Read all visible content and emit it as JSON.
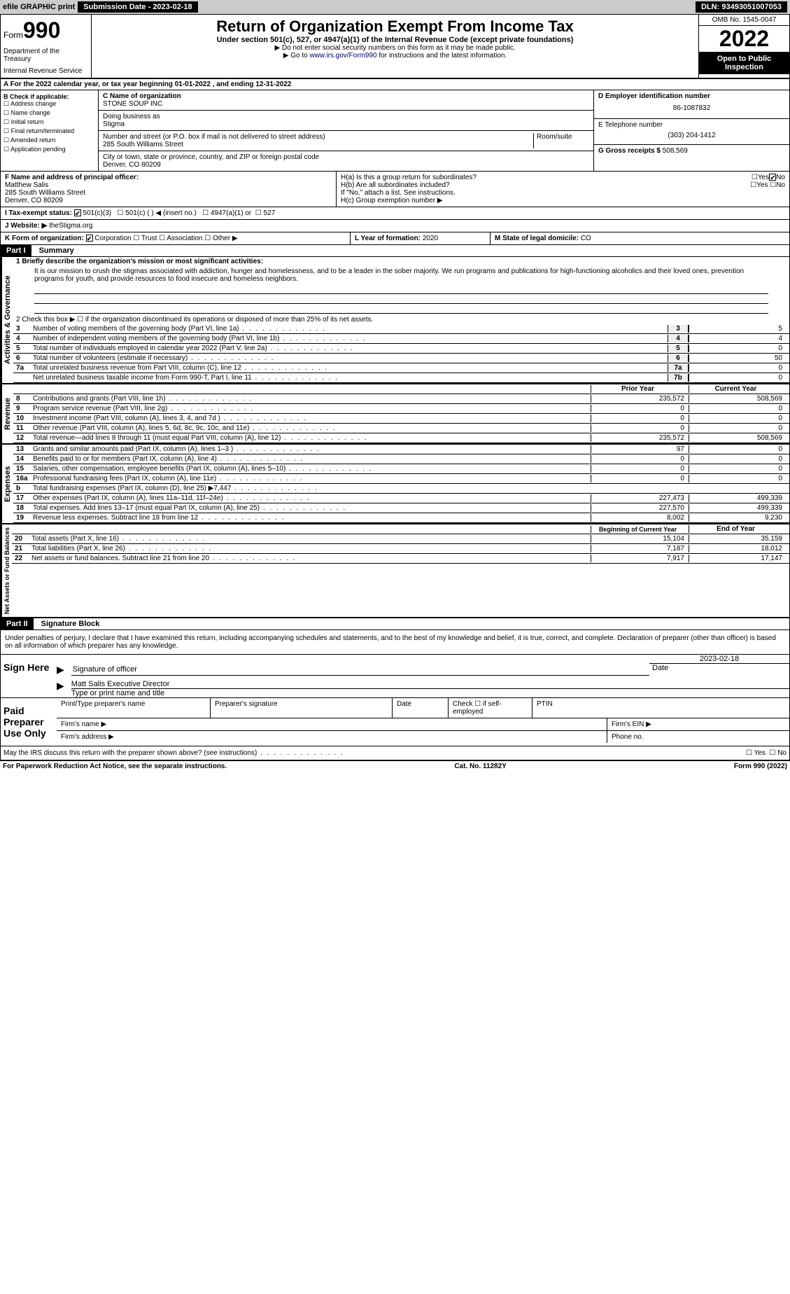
{
  "topbar": {
    "efile": "efile GRAPHIC print",
    "submission_label": "Submission Date - 2023-02-18",
    "dln": "DLN: 93493051007053"
  },
  "header": {
    "form_word": "Form",
    "form_num": "990",
    "dept": "Department of the Treasury",
    "irs": "Internal Revenue Service",
    "title": "Return of Organization Exempt From Income Tax",
    "subtitle": "Under section 501(c), 527, or 4947(a)(1) of the Internal Revenue Code (except private foundations)",
    "note1": "▶ Do not enter social security numbers on this form as it may be made public.",
    "note2": "▶ Go to www.irs.gov/Form990 for instructions and the latest information.",
    "omb": "OMB No. 1545-0047",
    "year": "2022",
    "open": "Open to Public Inspection"
  },
  "row_a": "A For the 2022 calendar year, or tax year beginning 01-01-2022    , and ending 12-31-2022",
  "section_b": {
    "title": "B Check if applicable:",
    "items": [
      "Address change",
      "Name change",
      "Initial return",
      "Final return/terminated",
      "Amended return",
      "Application pending"
    ]
  },
  "section_c": {
    "name_label": "C Name of organization",
    "name": "STONE SOUP INC",
    "dba_label": "Doing business as",
    "dba": "Stigma",
    "street_label": "Number and street (or P.O. box if mail is not delivered to street address)",
    "street": "285 South Williams Street",
    "room_label": "Room/suite",
    "city_label": "City or town, state or province, country, and ZIP or foreign postal code",
    "city": "Denver, CO  80209"
  },
  "section_d": {
    "label": "D Employer identification number",
    "value": "86-1087832"
  },
  "section_e": {
    "label": "E Telephone number",
    "value": "(303) 204-1412"
  },
  "section_g": {
    "label": "G Gross receipts $",
    "value": "508,569"
  },
  "section_f": {
    "label": "F Name and address of principal officer:",
    "name": "Matthew Salis",
    "street": "285 South Williams Street",
    "city": "Denver, CO  80209"
  },
  "section_h": {
    "a": "H(a)  Is this a group return for subordinates?",
    "b": "H(b)  Are all subordinates included?",
    "b_note": "If \"No,\" attach a list. See instructions.",
    "c": "H(c)  Group exemption number ▶"
  },
  "section_i": {
    "label": "I   Tax-exempt status:",
    "opts": [
      "501(c)(3)",
      "501(c) (  ) ◀ (insert no.)",
      "4947(a)(1) or",
      "527"
    ]
  },
  "section_j": {
    "label": "J   Website: ▶",
    "value": " theStigma.org"
  },
  "section_k": {
    "label": "K Form of organization:",
    "opts": [
      "Corporation",
      "Trust",
      "Association",
      "Other ▶"
    ]
  },
  "section_l": {
    "label": "L Year of formation:",
    "value": "2020"
  },
  "section_m": {
    "label": "M State of legal domicile:",
    "value": "CO"
  },
  "part1": {
    "header": "Part I",
    "title": "Summary",
    "line1_label": "1  Briefly describe the organization's mission or most significant activities:",
    "mission": "It is our mission to crush the stigmas associated with addiction, hunger and homelessness, and to be a leader in the sober majority. We run programs and publications for high-functioning alcoholics and their loved ones, prevention programs for youth, and provide resources to food insecure and homeless neighbors.",
    "line2": "2   Check this box ▶ ☐ if the organization discontinued its operations or disposed of more than 25% of its net assets.",
    "rows_ag": [
      {
        "n": "3",
        "t": "Number of voting members of the governing body (Part VI, line 1a)",
        "c": "3",
        "v": "5"
      },
      {
        "n": "4",
        "t": "Number of independent voting members of the governing body (Part VI, line 1b)",
        "c": "4",
        "v": "4"
      },
      {
        "n": "5",
        "t": "Total number of individuals employed in calendar year 2022 (Part V, line 2a)",
        "c": "5",
        "v": "0"
      },
      {
        "n": "6",
        "t": "Total number of volunteers (estimate if necessary)",
        "c": "6",
        "v": "50"
      },
      {
        "n": "7a",
        "t": "Total unrelated business revenue from Part VIII, column (C), line 12",
        "c": "7a",
        "v": "0"
      },
      {
        "n": "",
        "t": "Net unrelated business taxable income from Form 990-T, Part I, line 11",
        "c": "7b",
        "v": "0"
      }
    ],
    "col_headers": {
      "prior": "Prior Year",
      "current": "Current Year"
    },
    "revenue_rows": [
      {
        "n": "8",
        "t": "Contributions and grants (Part VIII, line 1h)",
        "p": "235,572",
        "c": "508,569"
      },
      {
        "n": "9",
        "t": "Program service revenue (Part VIII, line 2g)",
        "p": "0",
        "c": "0"
      },
      {
        "n": "10",
        "t": "Investment income (Part VIII, column (A), lines 3, 4, and 7d )",
        "p": "0",
        "c": "0"
      },
      {
        "n": "11",
        "t": "Other revenue (Part VIII, column (A), lines 5, 6d, 8c, 9c, 10c, and 11e)",
        "p": "0",
        "c": "0"
      },
      {
        "n": "12",
        "t": "Total revenue—add lines 8 through 11 (must equal Part VIII, column (A), line 12)",
        "p": "235,572",
        "c": "508,569"
      }
    ],
    "expense_rows": [
      {
        "n": "13",
        "t": "Grants and similar amounts paid (Part IX, column (A), lines 1–3 )",
        "p": "97",
        "c": "0"
      },
      {
        "n": "14",
        "t": "Benefits paid to or for members (Part IX, column (A), line 4)",
        "p": "0",
        "c": "0"
      },
      {
        "n": "15",
        "t": "Salaries, other compensation, employee benefits (Part IX, column (A), lines 5–10)",
        "p": "0",
        "c": "0"
      },
      {
        "n": "16a",
        "t": "Professional fundraising fees (Part IX, column (A), line 11e)",
        "p": "0",
        "c": "0"
      },
      {
        "n": "b",
        "t": "Total fundraising expenses (Part IX, column (D), line 25) ▶7,447",
        "p": "",
        "c": "",
        "gray": true
      },
      {
        "n": "17",
        "t": "Other expenses (Part IX, column (A), lines 11a–11d, 11f–24e)",
        "p": "227,473",
        "c": "499,339"
      },
      {
        "n": "18",
        "t": "Total expenses. Add lines 13–17 (must equal Part IX, column (A), line 25)",
        "p": "227,570",
        "c": "499,339"
      },
      {
        "n": "19",
        "t": "Revenue less expenses. Subtract line 18 from line 12",
        "p": "8,002",
        "c": "9,230"
      }
    ],
    "net_headers": {
      "begin": "Beginning of Current Year",
      "end": "End of Year"
    },
    "net_rows": [
      {
        "n": "20",
        "t": "Total assets (Part X, line 16)",
        "p": "15,104",
        "c": "35,159"
      },
      {
        "n": "21",
        "t": "Total liabilities (Part X, line 26)",
        "p": "7,187",
        "c": "18,012"
      },
      {
        "n": "22",
        "t": "Net assets or fund balances. Subtract line 21 from line 20",
        "p": "7,917",
        "c": "17,147"
      }
    ],
    "side_labels": {
      "ag": "Activities & Governance",
      "rev": "Revenue",
      "exp": "Expenses",
      "net": "Net Assets or Fund Balances"
    }
  },
  "part2": {
    "header": "Part II",
    "title": "Signature Block",
    "declaration": "Under penalties of perjury, I declare that I have examined this return, including accompanying schedules and statements, and to the best of my knowledge and belief, it is true, correct, and complete. Declaration of preparer (other than officer) is based on all information of which preparer has any knowledge.",
    "sign_here": "Sign Here",
    "sig_date": "2023-02-18",
    "sig_officer": "Signature of officer",
    "date_label": "Date",
    "officer_name": "Matt Salis  Executive Director",
    "type_name": "Type or print name and title",
    "paid_prep": "Paid Preparer Use Only",
    "prep_name": "Print/Type preparer's name",
    "prep_sig": "Preparer's signature",
    "prep_date": "Date",
    "prep_check": "Check ☐ if self-employed",
    "ptin": "PTIN",
    "firm_name": "Firm's name    ▶",
    "firm_ein": "Firm's EIN ▶",
    "firm_addr": "Firm's address ▶",
    "phone": "Phone no.",
    "may_irs": "May the IRS discuss this return with the preparer shown above? (see instructions)",
    "yes": "Yes",
    "no": "No"
  },
  "footer": {
    "paperwork": "For Paperwork Reduction Act Notice, see the separate instructions.",
    "cat": "Cat. No. 11282Y",
    "form": "Form 990 (2022)"
  }
}
